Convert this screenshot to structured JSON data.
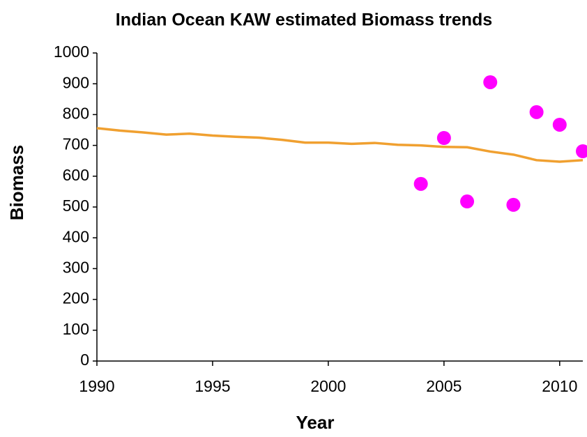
{
  "chart_data": {
    "type": "line",
    "title": "Indian Ocean KAW estimated Biomass trends",
    "x_label": "Year",
    "y_label": "Biomass",
    "xlim": [
      1990,
      2011
    ],
    "xticks": [
      1990,
      1995,
      2000,
      2005,
      2010
    ],
    "ylim": [
      0,
      1000
    ],
    "yticks": [
      0,
      100,
      200,
      300,
      400,
      500,
      600,
      700,
      800,
      900,
      1000
    ],
    "grid": false,
    "series": [
      {
        "type": "line",
        "color": "#f0a030",
        "x": [
          1990,
          1991,
          1992,
          1993,
          1994,
          1995,
          1996,
          1997,
          1998,
          1999,
          2000,
          2001,
          2002,
          2003,
          2004,
          2005,
          2006,
          2007,
          2008,
          2009,
          2010,
          2011
        ],
        "values": [
          756,
          748,
          742,
          735,
          738,
          732,
          728,
          725,
          718,
          709,
          709,
          705,
          708,
          702,
          700,
          695,
          694,
          680,
          670,
          652,
          647,
          652
        ]
      },
      {
        "type": "scatter",
        "color": "#ff00ff",
        "x": [
          2004,
          2005,
          2006,
          2007,
          2008,
          2009,
          2010,
          2011
        ],
        "values": [
          575,
          724,
          518,
          905,
          507,
          808,
          767,
          681
        ]
      }
    ]
  }
}
